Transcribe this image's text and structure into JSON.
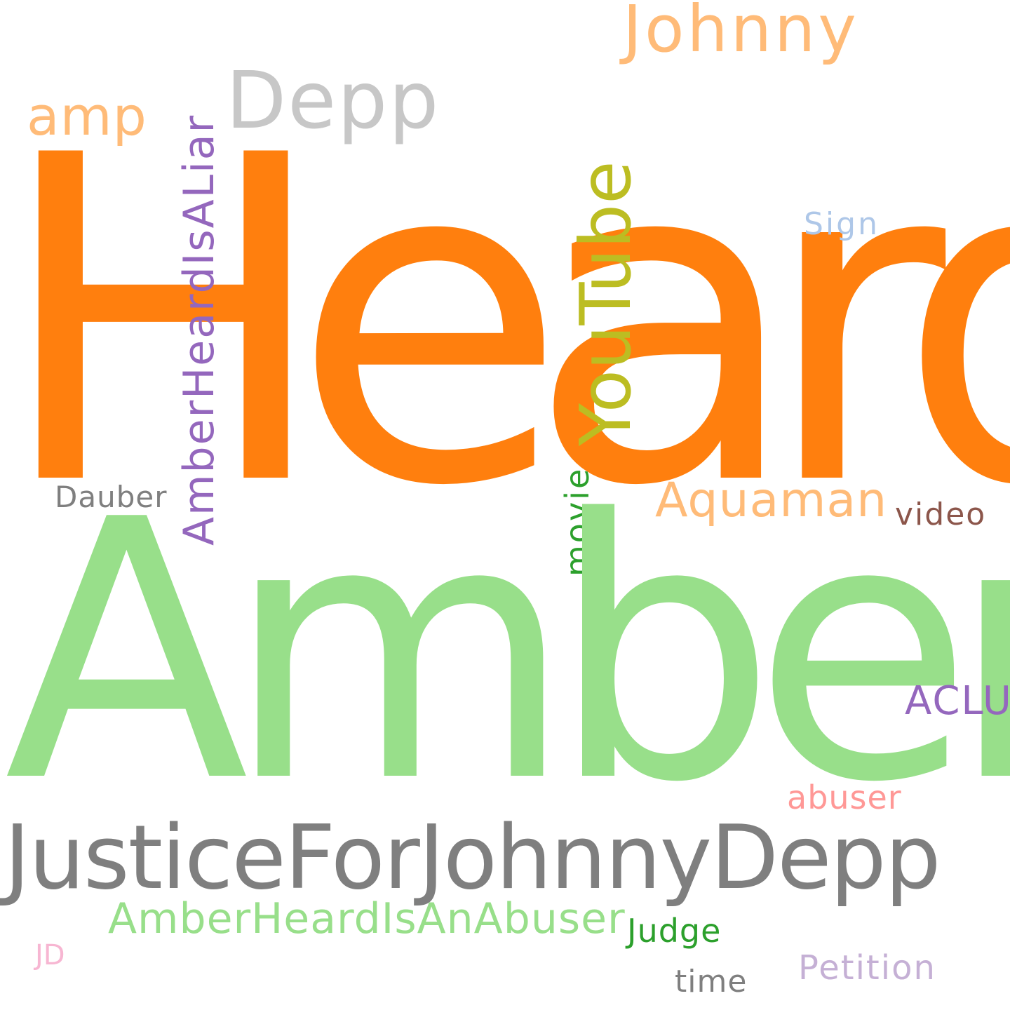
{
  "words": {
    "heard": "Heard",
    "amber": "Amber",
    "justice": "JusticeForJohnnyDepp",
    "johnny": "Johnny",
    "depp": "Depp",
    "amp": "amp",
    "amberheardisaliar": "AmberHeardIsALiar",
    "youtube": "YouTube",
    "sign": "Sign",
    "dauber": "Dauber",
    "movie": "movie",
    "aquaman": "Aquaman",
    "video": "video",
    "aclu": "ACLU",
    "abuser": "abuser",
    "amberheardisanabuser": "AmberHeardIsAnAbuser",
    "judge": "Judge",
    "jd": "JD",
    "petition": "Petition",
    "time": "time"
  },
  "colors": {
    "heard": "#ff7f0e",
    "amber": "#98df8a",
    "justice": "#7f7f7f",
    "johnny": "#ffbb78",
    "depp": "#c7c7c7",
    "amp": "#ffbb78",
    "amberheardisaliar": "#9467bd",
    "youtube": "#bcbd22",
    "sign": "#aec7e8",
    "dauber": "#7f7f7f",
    "movie": "#2ca02c",
    "aquaman": "#ffbb78",
    "video": "#8c564b",
    "aclu": "#9467bd",
    "abuser": "#ff9896",
    "amberheardisanabuser": "#98df8a",
    "judge": "#2ca02c",
    "jd": "#f7b6d2",
    "petition": "#c5b0d5",
    "time": "#7f7f7f"
  }
}
